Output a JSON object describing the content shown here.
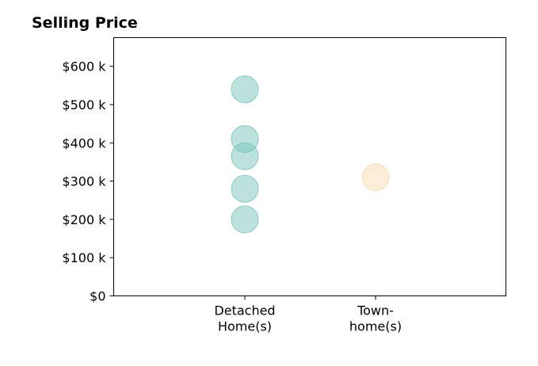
{
  "chart_data": {
    "type": "scatter",
    "title": "Selling Price",
    "xlabel": "",
    "ylabel": "",
    "categories": [
      [
        "Detached",
        "Home(s)"
      ],
      [
        "Town-",
        "home(s)"
      ]
    ],
    "yticks": [
      0,
      100000,
      200000,
      300000,
      400000,
      500000,
      600000
    ],
    "ytick_labels": [
      "$0",
      "$100 k",
      "$200 k",
      "$300 k",
      "$400 k",
      "$500 k",
      "$600 k"
    ],
    "ylim": [
      0,
      675000
    ],
    "grid": false,
    "series": [
      {
        "category_index": 0,
        "color": "#7cc5bd",
        "values": [
          540000,
          410000,
          365000,
          280000,
          200000
        ]
      },
      {
        "category_index": 1,
        "color": "#f5deb3",
        "values": [
          310000
        ]
      }
    ],
    "marker_opacity": 0.5
  }
}
